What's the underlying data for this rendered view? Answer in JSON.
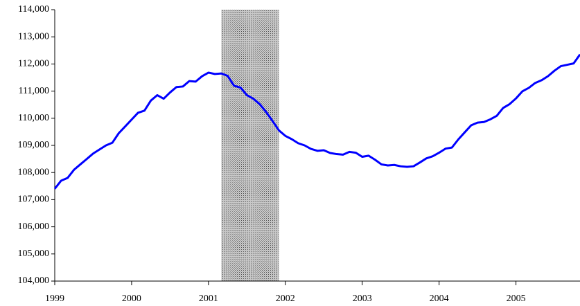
{
  "chart_data": {
    "type": "line",
    "x": [
      1999,
      1999.083,
      1999.167,
      1999.25,
      1999.333,
      1999.417,
      1999.5,
      1999.583,
      1999.667,
      1999.75,
      1999.833,
      1999.917,
      2000,
      2000.083,
      2000.167,
      2000.25,
      2000.333,
      2000.417,
      2000.5,
      2000.583,
      2000.667,
      2000.75,
      2000.833,
      2000.917,
      2001,
      2001.083,
      2001.167,
      2001.25,
      2001.333,
      2001.417,
      2001.5,
      2001.583,
      2001.667,
      2001.75,
      2001.833,
      2001.917,
      2002,
      2002.083,
      2002.167,
      2002.25,
      2002.333,
      2002.417,
      2002.5,
      2002.583,
      2002.667,
      2002.75,
      2002.833,
      2002.917,
      2003,
      2003.083,
      2003.167,
      2003.25,
      2003.333,
      2003.417,
      2003.5,
      2003.583,
      2003.667,
      2003.75,
      2003.833,
      2003.917,
      2004,
      2004.083,
      2004.167,
      2004.25,
      2004.333,
      2004.417,
      2004.5,
      2004.583,
      2004.667,
      2004.75,
      2004.833,
      2004.917,
      2005,
      2005.083,
      2005.167,
      2005.25,
      2005.333,
      2005.417,
      2005.5,
      2005.583,
      2005.667,
      2005.75,
      2005.833
    ],
    "series": [
      {
        "color": "#0000ff",
        "values": [
          107400,
          107700,
          107800,
          108100,
          108300,
          108500,
          108700,
          108850,
          109000,
          109100,
          109450,
          109700,
          109950,
          110200,
          110280,
          110650,
          110850,
          110720,
          110950,
          111150,
          111170,
          111370,
          111350,
          111550,
          111680,
          111630,
          111650,
          111560,
          111200,
          111130,
          110850,
          110720,
          110520,
          110230,
          109900,
          109550,
          109350,
          109230,
          109080,
          109000,
          108870,
          108800,
          108820,
          108720,
          108680,
          108660,
          108760,
          108730,
          108580,
          108620,
          108470,
          108300,
          108260,
          108280,
          108230,
          108210,
          108230,
          108370,
          108520,
          108600,
          108730,
          108880,
          108920,
          109220,
          109480,
          109740,
          109840,
          109860,
          109960,
          110090,
          110380,
          110520,
          110730,
          110990,
          111120,
          111300,
          111400,
          111550,
          111750,
          111920,
          111970,
          112020,
          112350
        ]
      }
    ],
    "shaded_regions": [
      [
        2001.167,
        2001.917
      ]
    ],
    "xlim": [
      1999,
      2005.833
    ],
    "xticks": [
      1999,
      2000,
      2001,
      2002,
      2003,
      2004,
      2005
    ],
    "ylim": [
      104000,
      114000
    ],
    "yticks": [
      {
        "value": 104000,
        "label": "104,000"
      },
      {
        "value": 105000,
        "label": "105,000"
      },
      {
        "value": 106000,
        "label": "106,000"
      },
      {
        "value": 107000,
        "label": "107,000"
      },
      {
        "value": 108000,
        "label": "108,000"
      },
      {
        "value": 109000,
        "label": "109,000"
      },
      {
        "value": 110000,
        "label": "110,000"
      },
      {
        "value": 111000,
        "label": "111,000"
      },
      {
        "value": 112000,
        "label": "112,000"
      },
      {
        "value": 113000,
        "label": "113,000"
      },
      {
        "value": 114000,
        "label": "114,000"
      }
    ]
  }
}
